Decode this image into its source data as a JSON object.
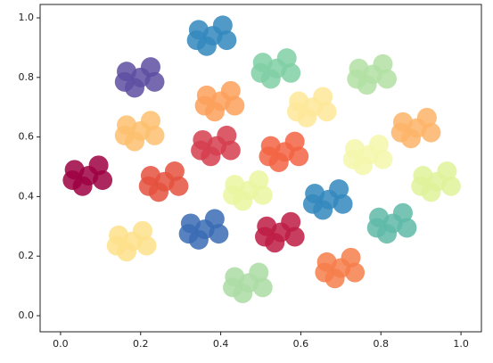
{
  "chart_data": {
    "type": "scatter",
    "xlim": [
      -0.051,
      1.051
    ],
    "ylim": [
      -0.054,
      1.045
    ],
    "xticks": [
      {
        "value": 0,
        "label": "0.0"
      },
      0.2,
      0.4,
      0.6,
      0.8,
      {
        "value": 1,
        "label": "1.0"
      }
    ],
    "yticks": [
      {
        "value": 0,
        "label": "0.0"
      },
      0.2,
      0.4,
      0.6,
      0.8,
      {
        "value": 1,
        "label": "1.0"
      }
    ],
    "series": [
      {
        "color": "#9e0142",
        "x": [
          0.07,
          0.035,
          0.105,
          0.055,
          0.095,
          0.03
        ],
        "y": [
          0.47,
          0.49,
          0.455,
          0.435,
          0.505,
          0.455
        ]
      },
      {
        "color": "#5e4fa2",
        "x": [
          0.2,
          0.165,
          0.235,
          0.185,
          0.225,
          0.16
        ],
        "y": [
          0.8,
          0.82,
          0.785,
          0.765,
          0.835,
          0.785
        ]
      },
      {
        "color": "#fdbf6f",
        "x": [
          0.2,
          0.165,
          0.235,
          0.185,
          0.225,
          0.16
        ],
        "y": [
          0.62,
          0.64,
          0.605,
          0.585,
          0.655,
          0.605
        ]
      },
      {
        "color": "#e4513e",
        "x": [
          0.26,
          0.225,
          0.295,
          0.245,
          0.285,
          0.22
        ],
        "y": [
          0.45,
          0.47,
          0.435,
          0.415,
          0.485,
          0.435
        ]
      },
      {
        "color": "#fee08b",
        "x": [
          0.18,
          0.145,
          0.215,
          0.165,
          0.205,
          0.14
        ],
        "y": [
          0.25,
          0.27,
          0.235,
          0.215,
          0.285,
          0.235
        ]
      },
      {
        "color": "#3288bd",
        "x": [
          0.38,
          0.345,
          0.415,
          0.365,
          0.405,
          0.34
        ],
        "y": [
          0.94,
          0.96,
          0.925,
          0.905,
          0.975,
          0.925
        ]
      },
      {
        "color": "#fba05a",
        "x": [
          0.4,
          0.365,
          0.435,
          0.385,
          0.425,
          0.36
        ],
        "y": [
          0.72,
          0.74,
          0.705,
          0.685,
          0.755,
          0.705
        ]
      },
      {
        "color": "#d53e4f",
        "x": [
          0.39,
          0.355,
          0.425,
          0.375,
          0.415,
          0.35
        ],
        "y": [
          0.57,
          0.59,
          0.555,
          0.535,
          0.605,
          0.555
        ]
      },
      {
        "color": "#3a6cb4",
        "x": [
          0.36,
          0.325,
          0.395,
          0.345,
          0.385,
          0.32
        ],
        "y": [
          0.29,
          0.31,
          0.275,
          0.255,
          0.325,
          0.275
        ]
      },
      {
        "color": "#eaf6a0",
        "x": [
          0.47,
          0.435,
          0.505,
          0.455,
          0.495,
          0.43
        ],
        "y": [
          0.42,
          0.44,
          0.405,
          0.385,
          0.455,
          0.405
        ]
      },
      {
        "color": "#acdca4",
        "x": [
          0.47,
          0.435,
          0.505,
          0.455,
          0.495,
          0.43
        ],
        "y": [
          0.11,
          0.13,
          0.095,
          0.075,
          0.145,
          0.095
        ]
      },
      {
        "color": "#80cfa5",
        "x": [
          0.54,
          0.505,
          0.575,
          0.525,
          0.565,
          0.5
        ],
        "y": [
          0.83,
          0.85,
          0.815,
          0.795,
          0.865,
          0.815
        ]
      },
      {
        "color": "#f26443",
        "x": [
          0.56,
          0.525,
          0.595,
          0.545,
          0.585,
          0.52
        ],
        "y": [
          0.55,
          0.57,
          0.535,
          0.515,
          0.585,
          0.535
        ]
      },
      {
        "color": "#be1c44",
        "x": [
          0.55,
          0.515,
          0.585,
          0.535,
          0.575,
          0.51
        ],
        "y": [
          0.28,
          0.3,
          0.265,
          0.245,
          0.315,
          0.265
        ]
      },
      {
        "color": "#fee799",
        "x": [
          0.63,
          0.595,
          0.665,
          0.615,
          0.655,
          0.59
        ],
        "y": [
          0.7,
          0.72,
          0.685,
          0.665,
          0.735,
          0.685
        ]
      },
      {
        "color": "#3288bd",
        "x": [
          0.67,
          0.635,
          0.705,
          0.655,
          0.695,
          0.63
        ],
        "y": [
          0.39,
          0.41,
          0.375,
          0.355,
          0.425,
          0.375
        ]
      },
      {
        "color": "#f67e4b",
        "x": [
          0.7,
          0.665,
          0.735,
          0.685,
          0.725,
          0.66
        ],
        "y": [
          0.16,
          0.18,
          0.145,
          0.125,
          0.195,
          0.145
        ]
      },
      {
        "color": "#f4f7ac",
        "x": [
          0.77,
          0.735,
          0.805,
          0.755,
          0.795,
          0.73
        ],
        "y": [
          0.54,
          0.56,
          0.525,
          0.505,
          0.575,
          0.525
        ]
      },
      {
        "color": "#b3e0a3",
        "x": [
          0.78,
          0.745,
          0.815,
          0.765,
          0.805,
          0.74
        ],
        "y": [
          0.81,
          0.83,
          0.795,
          0.775,
          0.845,
          0.795
        ]
      },
      {
        "color": "#5fbaa8",
        "x": [
          0.83,
          0.795,
          0.865,
          0.815,
          0.855,
          0.79
        ],
        "y": [
          0.31,
          0.33,
          0.295,
          0.275,
          0.345,
          0.295
        ]
      },
      {
        "color": "#fdb469",
        "x": [
          0.89,
          0.855,
          0.925,
          0.875,
          0.915,
          0.85
        ],
        "y": [
          0.63,
          0.65,
          0.615,
          0.595,
          0.665,
          0.615
        ]
      },
      {
        "color": "#dff29a",
        "x": [
          0.94,
          0.905,
          0.975,
          0.925,
          0.965,
          0.9
        ],
        "y": [
          0.45,
          0.47,
          0.435,
          0.415,
          0.485,
          0.435
        ]
      }
    ]
  }
}
